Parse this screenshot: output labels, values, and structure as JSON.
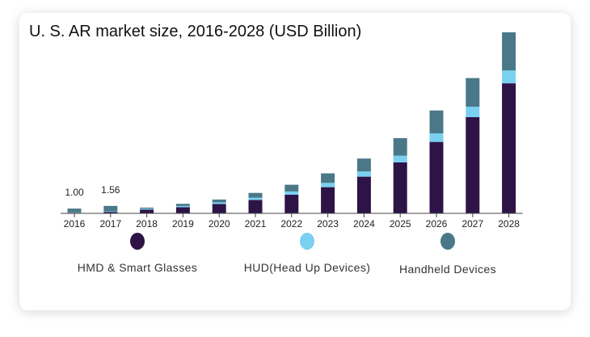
{
  "chart_data": {
    "type": "bar",
    "stacked": true,
    "title": "U. S. AR market size, 2016-2028 (USD Billion)",
    "categories": [
      "2016",
      "2017",
      "2018",
      "2019",
      "2020",
      "2021",
      "2022",
      "2023",
      "2024",
      "2025",
      "2026",
      "2027",
      "2028"
    ],
    "series": [
      {
        "name": "HMD & Smart Glasses",
        "color": "#2e1347",
        "values": [
          0.15,
          0.3,
          0.8,
          1.3,
          1.95,
          2.8,
          3.9,
          5.5,
          7.7,
          10.7,
          15.0,
          20.2,
          27.3
        ]
      },
      {
        "name": "HUD(Head Up Devices)",
        "color": "#7ad0f0",
        "values": [
          0.05,
          0.12,
          0.2,
          0.25,
          0.35,
          0.5,
          0.7,
          0.9,
          1.1,
          1.4,
          1.8,
          2.2,
          2.7
        ]
      },
      {
        "name": "Handheld Devices",
        "color": "#4a7889",
        "values": [
          0.8,
          1.14,
          0.2,
          0.45,
          0.6,
          1.0,
          1.4,
          2.0,
          2.7,
          3.7,
          4.8,
          6.0,
          8.0
        ]
      }
    ],
    "data_labels": [
      {
        "category": "2016",
        "text": "1.00"
      },
      {
        "category": "2017",
        "text": "1.56"
      }
    ],
    "ylim": [
      0,
      38
    ],
    "grid": false,
    "legend_position": "bottom"
  }
}
